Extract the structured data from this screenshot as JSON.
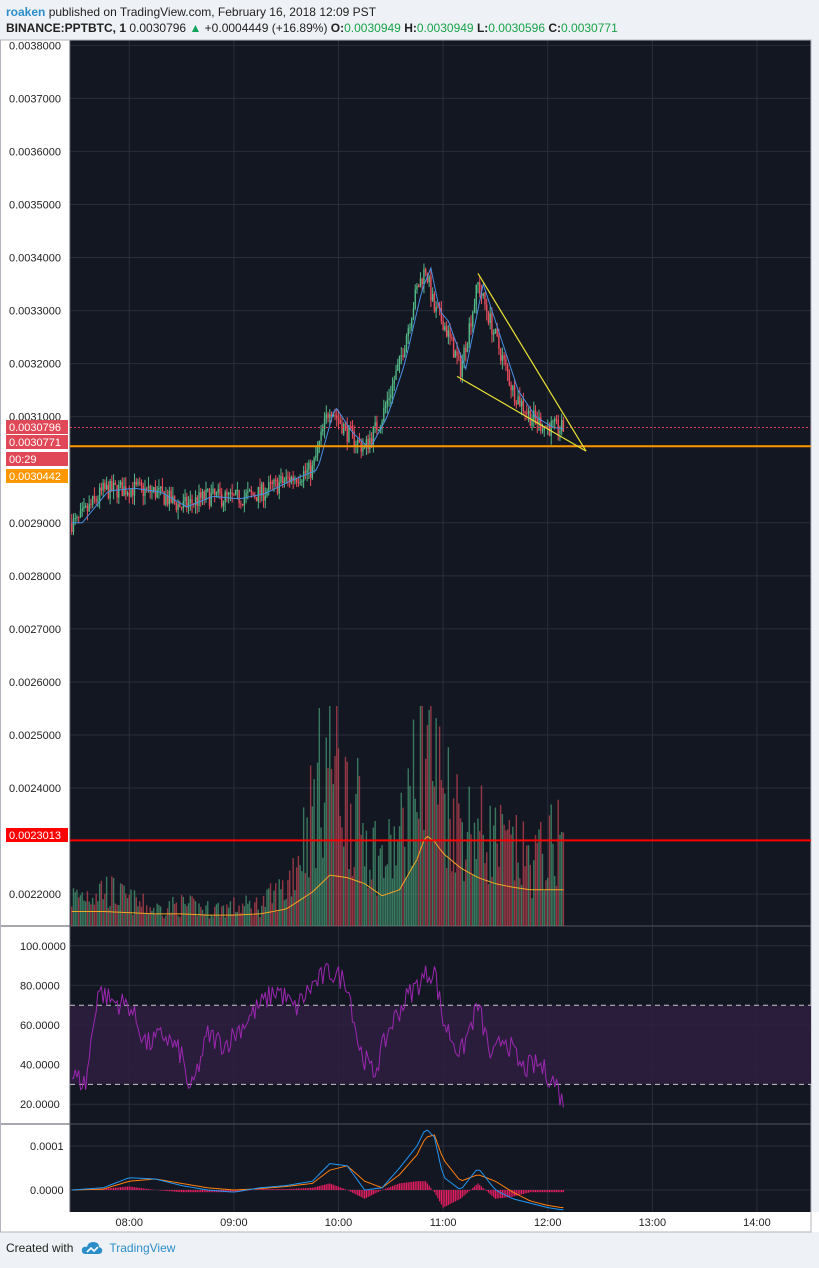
{
  "header": {
    "user": "roaken",
    "published_text": "published on TradingView.com, February 16, 2018 12:09 PST",
    "symbol": "BINANCE:PPTBTC, 1",
    "last": "0.0030796",
    "change": "+0.0004449 (+16.89%)",
    "o_label": "O:",
    "o_val": "0.0030949",
    "h_label": "H:",
    "h_val": "0.0030949",
    "l_label": "L:",
    "l_val": "0.0030596",
    "c_label": "C:",
    "c_val": "0.0030771"
  },
  "footer": {
    "created_with": "Created with",
    "brand": "TradingView",
    "icon": "tradingview-cloud-icon"
  },
  "colors": {
    "background": "#131722",
    "grid": "#2a2e39",
    "up": "#53b987",
    "down": "#eb4d5c",
    "ma": "#4a90e2",
    "trendline": "#e8e233",
    "support": "#ff9800",
    "resistance": "#e0221f",
    "rsi": "#9c27b0",
    "rsi_band": "#2d1e3f"
  },
  "price_labels": [
    {
      "text": "0.0030796",
      "bg": "#e04757",
      "color": "#ffffff"
    },
    {
      "text": "0.0030771",
      "bg": "#e04757",
      "color": "#ffffff"
    },
    {
      "text": "00:29",
      "bg": "#e04757",
      "color": "#ffffff"
    },
    {
      "text": "0.0030442",
      "bg": "#ff9800",
      "color": "#ffffff"
    },
    {
      "text": "0.0023013",
      "bg": "#ff0000",
      "color": "#ffffff"
    }
  ],
  "chart_data": [
    {
      "type": "candlestick",
      "title": "BINANCE:PPTBTC, 1",
      "y_ticks": [
        "0.0038000",
        "0.0037000",
        "0.0036000",
        "0.0035000",
        "0.0034000",
        "0.0033000",
        "0.0032000",
        "0.0031000",
        "0.0029000",
        "0.0028000",
        "0.0027000",
        "0.0026000",
        "0.0025000",
        "0.0024000",
        "0.0022000"
      ],
      "ylim": [
        0.00214,
        0.00381
      ],
      "x_ticks": [
        "08:00",
        "09:00",
        "10:00",
        "11:00",
        "12:00",
        "13:00",
        "14:00"
      ],
      "x_range": [
        "07:26",
        "14:31"
      ],
      "series": [
        {
          "x": [
            "07:30",
            "07:45",
            "08:00",
            "08:15",
            "08:30",
            "08:45",
            "09:00",
            "09:15",
            "09:30",
            "09:45",
            "09:55",
            "10:05",
            "10:15",
            "10:25",
            "10:35",
            "10:45",
            "10:50",
            "10:55",
            "11:00",
            "11:10",
            "11:20",
            "11:30",
            "11:40",
            "11:50",
            "12:00",
            "12:08"
          ],
          "y": [
            0.0029,
            0.00296,
            0.002965,
            0.002958,
            0.00293,
            0.00295,
            0.002945,
            0.002955,
            0.00298,
            0.003,
            0.00312,
            0.00307,
            0.00304,
            0.0031,
            0.0032,
            0.00334,
            0.00338,
            0.0033,
            0.00328,
            0.00319,
            0.00335,
            0.00325,
            0.00315,
            0.0031,
            0.00308,
            0.003077
          ]
        }
      ],
      "annotations": [
        {
          "type": "horizontal_line",
          "value": 0.0030442,
          "color": "#ff9800"
        },
        {
          "type": "horizontal_line",
          "value": 0.0023013,
          "color": "#ff0000"
        },
        {
          "type": "horizontal_line",
          "value": 0.0030796,
          "color": "#e04757",
          "style": "dotted"
        },
        {
          "type": "falling_wedge",
          "color": "#e8e233",
          "upper": [
            [
              "11:20",
              0.00337
            ],
            [
              "12:22",
              0.003035
            ]
          ],
          "lower": [
            [
              "11:08",
              0.003176
            ],
            [
              "12:22",
              0.003035
            ]
          ]
        }
      ]
    },
    {
      "type": "bar",
      "title": "Volume",
      "note": "volume bars overlay bottom of price pane, with moving average line",
      "x": [
        "07:30",
        "07:45",
        "08:00",
        "08:15",
        "08:30",
        "08:45",
        "09:00",
        "09:15",
        "09:30",
        "09:45",
        "09:55",
        "10:05",
        "10:15",
        "10:25",
        "10:35",
        "10:45",
        "10:50",
        "10:55",
        "11:00",
        "11:10",
        "11:20",
        "11:30",
        "11:40",
        "11:50",
        "12:00",
        "12:08"
      ],
      "values": [
        0.14,
        0.18,
        0.12,
        0.08,
        0.1,
        0.08,
        0.09,
        0.1,
        0.18,
        0.55,
        0.85,
        0.6,
        0.45,
        0.3,
        0.4,
        0.7,
        1.0,
        0.75,
        0.65,
        0.5,
        0.45,
        0.4,
        0.35,
        0.3,
        0.35,
        0.45
      ],
      "ma": [
        0.12,
        0.12,
        0.11,
        0.1,
        0.1,
        0.09,
        0.09,
        0.1,
        0.14,
        0.28,
        0.42,
        0.4,
        0.35,
        0.25,
        0.3,
        0.55,
        0.75,
        0.7,
        0.6,
        0.48,
        0.4,
        0.35,
        0.32,
        0.3,
        0.3,
        0.3
      ]
    },
    {
      "type": "line",
      "title": "RSI",
      "y_ticks": [
        "100.0000",
        "80.0000",
        "60.0000",
        "40.0000",
        "20.0000"
      ],
      "ylim": [
        10,
        110
      ],
      "bands": [
        30,
        70
      ],
      "series": [
        {
          "x": [
            "07:27",
            "07:35",
            "07:42",
            "07:50",
            "08:00",
            "08:10",
            "08:20",
            "08:30",
            "08:35",
            "08:45",
            "08:55",
            "09:05",
            "09:15",
            "09:25",
            "09:35",
            "09:45",
            "09:55",
            "10:05",
            "10:12",
            "10:20",
            "10:30",
            "10:40",
            "10:45",
            "10:50",
            "10:55",
            "11:00",
            "11:10",
            "11:20",
            "11:28",
            "11:35",
            "11:45",
            "11:55",
            "12:05",
            "12:08"
          ],
          "y": [
            35,
            30,
            78,
            72,
            70,
            50,
            55,
            45,
            25,
            55,
            50,
            60,
            70,
            78,
            68,
            80,
            87,
            82,
            48,
            35,
            60,
            75,
            80,
            85,
            88,
            62,
            45,
            70,
            42,
            55,
            38,
            40,
            30,
            22
          ]
        }
      ]
    },
    {
      "type": "line",
      "title": "MACD",
      "y_ticks": [
        "0.0001",
        "0.0000"
      ],
      "ylim": [
        -5e-05,
        0.00015
      ],
      "series": [
        {
          "name": "macd",
          "x": [
            "07:27",
            "07:45",
            "08:00",
            "08:15",
            "08:30",
            "08:45",
            "09:00",
            "09:15",
            "09:30",
            "09:45",
            "09:55",
            "10:05",
            "10:15",
            "10:25",
            "10:35",
            "10:45",
            "10:50",
            "10:55",
            "11:00",
            "11:10",
            "11:20",
            "11:30",
            "11:40",
            "11:50",
            "12:00",
            "12:08"
          ],
          "y": [
            0.0,
            5e-06,
            2.8e-05,
            2.5e-05,
            1e-05,
            0.0,
            -5e-06,
            5e-06,
            1e-05,
            2e-05,
            6e-05,
            5.5e-05,
            0.0,
            5e-06,
            5e-05,
            0.0001,
            0.00014,
            0.00012,
            3e-05,
            0.0,
            5e-05,
            0.0,
            -2e-05,
            -3e-05,
            -4e-05,
            -4.5e-05
          ]
        },
        {
          "name": "signal",
          "x": [
            "07:27",
            "07:45",
            "08:00",
            "08:15",
            "08:30",
            "08:45",
            "09:00",
            "09:15",
            "09:30",
            "09:45",
            "09:55",
            "10:05",
            "10:15",
            "10:25",
            "10:35",
            "10:45",
            "10:50",
            "10:55",
            "11:00",
            "11:10",
            "11:20",
            "11:30",
            "11:40",
            "11:50",
            "12:00",
            "12:08"
          ],
          "y": [
            0.0,
            2e-06,
            2e-05,
            2.5e-05,
            1.5e-05,
            5e-06,
            0.0,
            3e-06,
            8e-06,
            1.5e-05,
            4.5e-05,
            5.5e-05,
            2e-05,
            5e-06,
            3.5e-05,
            8e-05,
            0.00012,
            0.000125,
            7e-05,
            2e-05,
            3.5e-05,
            2e-05,
            -5e-06,
            -2.5e-05,
            -3.5e-05,
            -4e-05
          ]
        }
      ]
    }
  ]
}
